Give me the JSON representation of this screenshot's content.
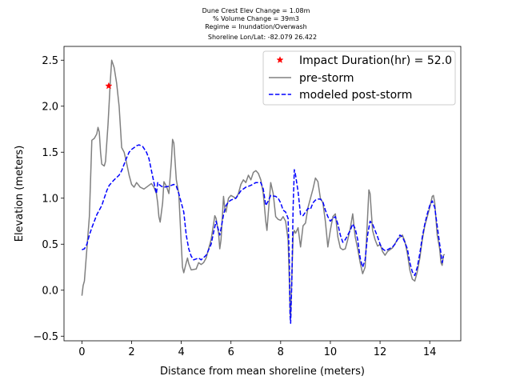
{
  "chart_data": {
    "type": "line",
    "title_lines": [
      "Dune Crest Elev Change = 1.08m",
      "% Volume Change = 39m3",
      "Regime = Inundation/Overwash",
      "Shoreline Lon/Lat: -82.079 26.422"
    ],
    "xlabel": "Distance from mean shoreline (meters)",
    "ylabel": "Elevation (meters)",
    "xlim": [
      -0.72,
      15.25
    ],
    "ylim": [
      -0.55,
      2.65
    ],
    "xticks": [
      0,
      2,
      4,
      6,
      8,
      10,
      12,
      14
    ],
    "yticks": [
      -0.5,
      0.0,
      0.5,
      1.0,
      1.5,
      2.0,
      2.5
    ],
    "ytick_labels": [
      "−0.5",
      "0.0",
      "0.5",
      "1.0",
      "1.5",
      "2.0",
      "2.5"
    ],
    "legend_position": "upper right",
    "colors": {
      "pre": "#808080",
      "post": "#0000ff",
      "marker": "#ff0000"
    },
    "marker": {
      "label": "Impact Duration(hr) = 52.0",
      "x": 1.08,
      "y": 2.22
    },
    "series": [
      {
        "name": "pre-storm",
        "style": "solid",
        "points": [
          [
            0,
            -0.06
          ],
          [
            0.05,
            0.05
          ],
          [
            0.1,
            0.1
          ],
          [
            0.2,
            0.45
          ],
          [
            0.3,
            0.8
          ],
          [
            0.35,
            1.2
          ],
          [
            0.4,
            1.63
          ],
          [
            0.5,
            1.65
          ],
          [
            0.6,
            1.7
          ],
          [
            0.65,
            1.77
          ],
          [
            0.7,
            1.72
          ],
          [
            0.75,
            1.5
          ],
          [
            0.8,
            1.37
          ],
          [
            0.9,
            1.35
          ],
          [
            0.95,
            1.4
          ],
          [
            1.05,
            1.8
          ],
          [
            1.15,
            2.3
          ],
          [
            1.2,
            2.5
          ],
          [
            1.3,
            2.42
          ],
          [
            1.4,
            2.25
          ],
          [
            1.5,
            2.0
          ],
          [
            1.6,
            1.55
          ],
          [
            1.7,
            1.5
          ],
          [
            1.8,
            1.38
          ],
          [
            1.9,
            1.25
          ],
          [
            2.0,
            1.15
          ],
          [
            2.1,
            1.12
          ],
          [
            2.2,
            1.17
          ],
          [
            2.35,
            1.12
          ],
          [
            2.5,
            1.1
          ],
          [
            2.7,
            1.14
          ],
          [
            2.8,
            1.16
          ],
          [
            2.9,
            1.12
          ],
          [
            3.0,
            1.05
          ],
          [
            3.05,
            0.95
          ],
          [
            3.1,
            0.8
          ],
          [
            3.15,
            0.74
          ],
          [
            3.25,
            0.95
          ],
          [
            3.3,
            1.18
          ],
          [
            3.4,
            1.13
          ],
          [
            3.5,
            1.05
          ],
          [
            3.6,
            1.4
          ],
          [
            3.65,
            1.64
          ],
          [
            3.7,
            1.6
          ],
          [
            3.8,
            1.2
          ],
          [
            3.9,
            1.05
          ],
          [
            4.0,
            0.5
          ],
          [
            4.05,
            0.25
          ],
          [
            4.1,
            0.19
          ],
          [
            4.2,
            0.3
          ],
          [
            4.25,
            0.35
          ],
          [
            4.3,
            0.29
          ],
          [
            4.4,
            0.22
          ],
          [
            4.6,
            0.23
          ],
          [
            4.7,
            0.3
          ],
          [
            4.8,
            0.28
          ],
          [
            4.9,
            0.3
          ],
          [
            5.0,
            0.35
          ],
          [
            5.2,
            0.55
          ],
          [
            5.3,
            0.72
          ],
          [
            5.35,
            0.81
          ],
          [
            5.4,
            0.78
          ],
          [
            5.5,
            0.62
          ],
          [
            5.55,
            0.45
          ],
          [
            5.6,
            0.55
          ],
          [
            5.7,
            1.02
          ],
          [
            5.75,
            0.9
          ],
          [
            5.8,
            0.85
          ],
          [
            5.9,
            1.0
          ],
          [
            6.0,
            1.03
          ],
          [
            6.2,
            1.0
          ],
          [
            6.3,
            1.05
          ],
          [
            6.4,
            1.15
          ],
          [
            6.5,
            1.2
          ],
          [
            6.6,
            1.17
          ],
          [
            6.7,
            1.25
          ],
          [
            6.8,
            1.2
          ],
          [
            6.9,
            1.28
          ],
          [
            7.0,
            1.3
          ],
          [
            7.1,
            1.27
          ],
          [
            7.2,
            1.2
          ],
          [
            7.3,
            1.05
          ],
          [
            7.4,
            0.75
          ],
          [
            7.45,
            0.65
          ],
          [
            7.5,
            0.83
          ],
          [
            7.6,
            1.17
          ],
          [
            7.7,
            1.05
          ],
          [
            7.8,
            0.8
          ],
          [
            7.9,
            0.77
          ],
          [
            8.0,
            0.76
          ],
          [
            8.1,
            0.8
          ],
          [
            8.2,
            0.75
          ],
          [
            8.3,
            0.55
          ],
          [
            8.35,
            0.1
          ],
          [
            8.38,
            -0.25
          ],
          [
            8.4,
            -0.3
          ],
          [
            8.45,
            0.15
          ],
          [
            8.5,
            0.6
          ],
          [
            8.55,
            0.65
          ],
          [
            8.6,
            0.62
          ],
          [
            8.7,
            0.68
          ],
          [
            8.8,
            0.47
          ],
          [
            8.9,
            0.7
          ],
          [
            9.0,
            0.73
          ],
          [
            9.1,
            0.9
          ],
          [
            9.2,
            1.0
          ],
          [
            9.3,
            1.1
          ],
          [
            9.4,
            1.22
          ],
          [
            9.5,
            1.18
          ],
          [
            9.6,
            1.0
          ],
          [
            9.7,
            0.95
          ],
          [
            9.8,
            0.75
          ],
          [
            9.9,
            0.47
          ],
          [
            10.0,
            0.65
          ],
          [
            10.1,
            0.8
          ],
          [
            10.2,
            0.83
          ],
          [
            10.3,
            0.58
          ],
          [
            10.4,
            0.46
          ],
          [
            10.5,
            0.44
          ],
          [
            10.6,
            0.45
          ],
          [
            10.7,
            0.55
          ],
          [
            10.8,
            0.67
          ],
          [
            10.9,
            0.83
          ],
          [
            11.0,
            0.58
          ],
          [
            11.1,
            0.45
          ],
          [
            11.2,
            0.3
          ],
          [
            11.3,
            0.18
          ],
          [
            11.4,
            0.25
          ],
          [
            11.5,
            0.8
          ],
          [
            11.55,
            1.09
          ],
          [
            11.6,
            1.05
          ],
          [
            11.7,
            0.65
          ],
          [
            11.8,
            0.55
          ],
          [
            11.9,
            0.48
          ],
          [
            12.0,
            0.5
          ],
          [
            12.1,
            0.42
          ],
          [
            12.2,
            0.38
          ],
          [
            12.3,
            0.42
          ],
          [
            12.5,
            0.46
          ],
          [
            12.7,
            0.55
          ],
          [
            12.9,
            0.6
          ],
          [
            13.0,
            0.53
          ],
          [
            13.1,
            0.4
          ],
          [
            13.2,
            0.22
          ],
          [
            13.3,
            0.12
          ],
          [
            13.4,
            0.1
          ],
          [
            13.5,
            0.2
          ],
          [
            13.6,
            0.35
          ],
          [
            13.7,
            0.55
          ],
          [
            13.8,
            0.7
          ],
          [
            13.9,
            0.8
          ],
          [
            14.0,
            0.9
          ],
          [
            14.1,
            1.02
          ],
          [
            14.15,
            1.03
          ],
          [
            14.2,
            0.95
          ],
          [
            14.3,
            0.6
          ],
          [
            14.4,
            0.45
          ],
          [
            14.45,
            0.3
          ],
          [
            14.5,
            0.27
          ],
          [
            14.55,
            0.38
          ],
          [
            14.6,
            0.39
          ]
        ]
      },
      {
        "name": "modeled post-storm",
        "style": "dashed",
        "points": [
          [
            0,
            0.44
          ],
          [
            0.1,
            0.45
          ],
          [
            0.2,
            0.5
          ],
          [
            0.3,
            0.6
          ],
          [
            0.4,
            0.68
          ],
          [
            0.5,
            0.75
          ],
          [
            0.6,
            0.82
          ],
          [
            0.7,
            0.87
          ],
          [
            0.8,
            0.92
          ],
          [
            0.9,
            1.0
          ],
          [
            1.0,
            1.08
          ],
          [
            1.1,
            1.14
          ],
          [
            1.2,
            1.17
          ],
          [
            1.3,
            1.2
          ],
          [
            1.5,
            1.25
          ],
          [
            1.6,
            1.3
          ],
          [
            1.7,
            1.37
          ],
          [
            1.8,
            1.44
          ],
          [
            1.9,
            1.5
          ],
          [
            2.0,
            1.53
          ],
          [
            2.2,
            1.57
          ],
          [
            2.3,
            1.58
          ],
          [
            2.45,
            1.56
          ],
          [
            2.6,
            1.5
          ],
          [
            2.7,
            1.43
          ],
          [
            2.8,
            1.3
          ],
          [
            2.9,
            1.17
          ],
          [
            3.0,
            1.05
          ],
          [
            3.05,
            1.17
          ],
          [
            3.1,
            1.15
          ],
          [
            3.2,
            1.13
          ],
          [
            3.3,
            1.12
          ],
          [
            3.5,
            1.13
          ],
          [
            3.6,
            1.14
          ],
          [
            3.7,
            1.15
          ],
          [
            3.8,
            1.13
          ],
          [
            3.9,
            1.05
          ],
          [
            4.0,
            0.95
          ],
          [
            4.1,
            0.85
          ],
          [
            4.2,
            0.6
          ],
          [
            4.3,
            0.45
          ],
          [
            4.4,
            0.37
          ],
          [
            4.5,
            0.33
          ],
          [
            4.7,
            0.35
          ],
          [
            4.8,
            0.33
          ],
          [
            5.0,
            0.38
          ],
          [
            5.1,
            0.44
          ],
          [
            5.2,
            0.5
          ],
          [
            5.3,
            0.63
          ],
          [
            5.4,
            0.75
          ],
          [
            5.5,
            0.65
          ],
          [
            5.55,
            0.6
          ],
          [
            5.6,
            0.67
          ],
          [
            5.7,
            0.82
          ],
          [
            5.8,
            0.92
          ],
          [
            5.9,
            0.96
          ],
          [
            6.0,
            0.98
          ],
          [
            6.2,
            1.0
          ],
          [
            6.4,
            1.08
          ],
          [
            6.6,
            1.12
          ],
          [
            6.8,
            1.14
          ],
          [
            7.0,
            1.17
          ],
          [
            7.2,
            1.17
          ],
          [
            7.3,
            1.1
          ],
          [
            7.4,
            0.92
          ],
          [
            7.5,
            0.97
          ],
          [
            7.6,
            1.03
          ],
          [
            7.8,
            1.02
          ],
          [
            7.9,
            1.0
          ],
          [
            8.0,
            0.95
          ],
          [
            8.1,
            0.87
          ],
          [
            8.2,
            0.85
          ],
          [
            8.3,
            0.78
          ],
          [
            8.35,
            0.3
          ],
          [
            8.38,
            -0.28
          ],
          [
            8.4,
            -0.36
          ],
          [
            8.45,
            0.1
          ],
          [
            8.5,
            0.9
          ],
          [
            8.55,
            1.31
          ],
          [
            8.6,
            1.25
          ],
          [
            8.7,
            1.07
          ],
          [
            8.8,
            0.82
          ],
          [
            8.9,
            0.81
          ],
          [
            9.0,
            0.85
          ],
          [
            9.1,
            0.89
          ],
          [
            9.2,
            0.88
          ],
          [
            9.3,
            0.95
          ],
          [
            9.4,
            0.98
          ],
          [
            9.5,
            0.99
          ],
          [
            9.6,
            0.99
          ],
          [
            9.7,
            0.96
          ],
          [
            9.8,
            0.87
          ],
          [
            9.9,
            0.8
          ],
          [
            10.0,
            0.75
          ],
          [
            10.1,
            0.78
          ],
          [
            10.2,
            0.8
          ],
          [
            10.3,
            0.72
          ],
          [
            10.4,
            0.6
          ],
          [
            10.5,
            0.52
          ],
          [
            10.6,
            0.55
          ],
          [
            10.7,
            0.6
          ],
          [
            10.8,
            0.65
          ],
          [
            10.9,
            0.72
          ],
          [
            11.0,
            0.67
          ],
          [
            11.1,
            0.55
          ],
          [
            11.2,
            0.35
          ],
          [
            11.3,
            0.25
          ],
          [
            11.4,
            0.33
          ],
          [
            11.5,
            0.6
          ],
          [
            11.6,
            0.75
          ],
          [
            11.7,
            0.72
          ],
          [
            11.8,
            0.65
          ],
          [
            11.9,
            0.58
          ],
          [
            12.0,
            0.5
          ],
          [
            12.1,
            0.45
          ],
          [
            12.2,
            0.43
          ],
          [
            12.3,
            0.44
          ],
          [
            12.5,
            0.47
          ],
          [
            12.6,
            0.5
          ],
          [
            12.7,
            0.55
          ],
          [
            12.8,
            0.6
          ],
          [
            12.9,
            0.58
          ],
          [
            13.0,
            0.52
          ],
          [
            13.1,
            0.45
          ],
          [
            13.2,
            0.3
          ],
          [
            13.3,
            0.2
          ],
          [
            13.4,
            0.16
          ],
          [
            13.5,
            0.25
          ],
          [
            13.6,
            0.4
          ],
          [
            13.7,
            0.58
          ],
          [
            13.8,
            0.72
          ],
          [
            13.9,
            0.83
          ],
          [
            14.0,
            0.92
          ],
          [
            14.1,
            0.97
          ],
          [
            14.2,
            0.9
          ],
          [
            14.3,
            0.7
          ],
          [
            14.4,
            0.5
          ],
          [
            14.45,
            0.4
          ],
          [
            14.5,
            0.3
          ],
          [
            14.55,
            0.37
          ]
        ]
      }
    ]
  }
}
